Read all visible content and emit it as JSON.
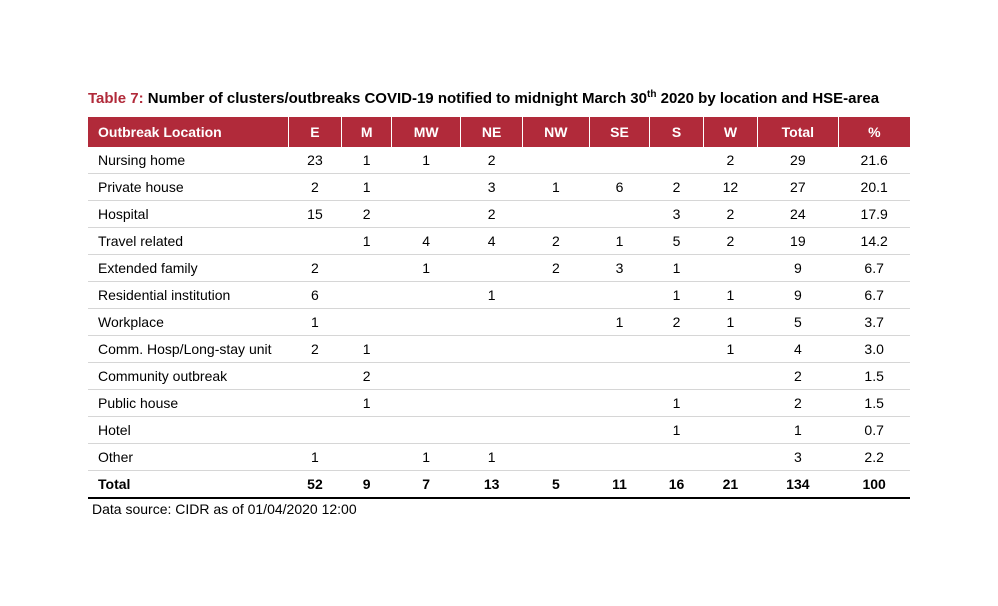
{
  "caption": {
    "table_num": "Table 7:",
    "title_before_sup": " Number of clusters/outbreaks COVID-19 notified to midnight March 30",
    "sup": "th",
    "title_after_sup": " 2020 by location and HSE-area"
  },
  "table": {
    "columns": [
      "Outbreak Location",
      "E",
      "M",
      "MW",
      "NE",
      "NW",
      "SE",
      "S",
      "W",
      "Total",
      "%"
    ],
    "rows": [
      [
        "Nursing home",
        "23",
        "1",
        "1",
        "2",
        "",
        "",
        "",
        "2",
        "29",
        "21.6"
      ],
      [
        "Private house",
        "2",
        "1",
        "",
        "3",
        "1",
        "6",
        "2",
        "12",
        "27",
        "20.1"
      ],
      [
        "Hospital",
        "15",
        "2",
        "",
        "2",
        "",
        "",
        "3",
        "2",
        "24",
        "17.9"
      ],
      [
        "Travel related",
        "",
        "1",
        "4",
        "4",
        "2",
        "1",
        "5",
        "2",
        "19",
        "14.2"
      ],
      [
        "Extended family",
        "2",
        "",
        "1",
        "",
        "2",
        "3",
        "1",
        "",
        "9",
        "6.7"
      ],
      [
        "Residential institution",
        "6",
        "",
        "",
        "1",
        "",
        "",
        "1",
        "1",
        "9",
        "6.7"
      ],
      [
        "Workplace",
        "1",
        "",
        "",
        "",
        "",
        "1",
        "2",
        "1",
        "5",
        "3.7"
      ],
      [
        "Comm. Hosp/Long-stay unit",
        "2",
        "1",
        "",
        "",
        "",
        "",
        "",
        "1",
        "4",
        "3.0"
      ],
      [
        "Community outbreak",
        "",
        "2",
        "",
        "",
        "",
        "",
        "",
        "",
        "2",
        "1.5"
      ],
      [
        "Public house",
        "",
        "1",
        "",
        "",
        "",
        "",
        "1",
        "",
        "2",
        "1.5"
      ],
      [
        "Hotel",
        "",
        "",
        "",
        "",
        "",
        "",
        "1",
        "",
        "1",
        "0.7"
      ],
      [
        "Other",
        "1",
        "",
        "1",
        "1",
        "",
        "",
        "",
        "",
        "3",
        "2.2"
      ]
    ],
    "total_row": [
      "Total",
      "52",
      "9",
      "7",
      "13",
      "5",
      "11",
      "16",
      "21",
      "134",
      "100"
    ],
    "header_bg": "#b12a3a",
    "header_fg": "#ffffff",
    "row_border_color": "#d6d6d6",
    "font_size": 14
  },
  "footnote": "Data source: CIDR as of 01/04/2020 12:00"
}
